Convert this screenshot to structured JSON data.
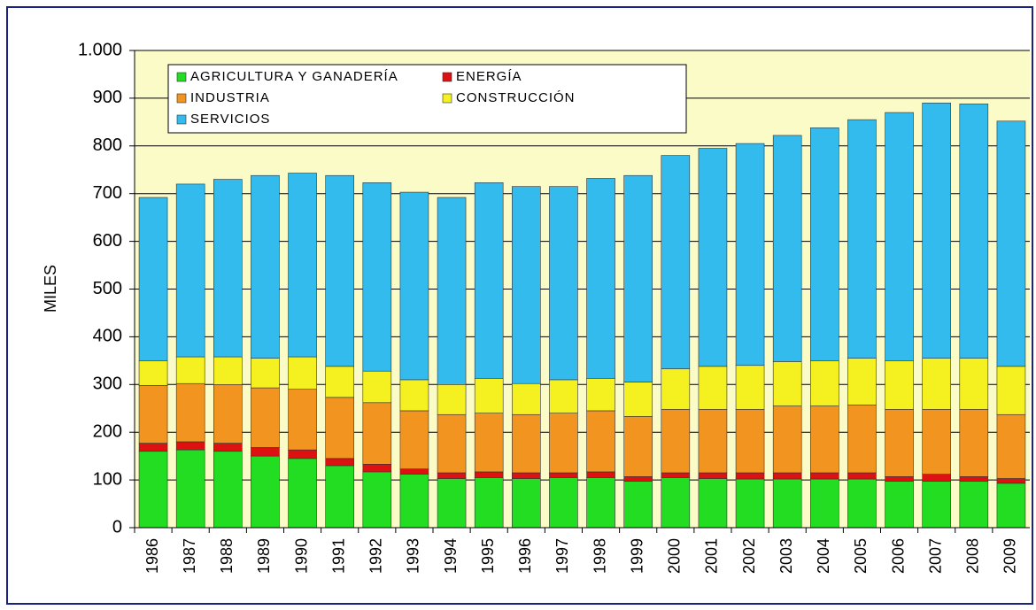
{
  "chart_data": {
    "type": "stacked_bar",
    "y_label": "MILES",
    "categories": [
      "1986",
      "1987",
      "1988",
      "1989",
      "1990",
      "1991",
      "1992",
      "1993",
      "1994",
      "1995",
      "1996",
      "1997",
      "1998",
      "1999",
      "2000",
      "2001",
      "2002",
      "2003",
      "2004",
      "2005",
      "2006",
      "2007",
      "2008",
      "2009"
    ],
    "series": [
      {
        "name": "AGRICULTURA Y GANADERÍA",
        "color": "#22dd22",
        "values": [
          160,
          163,
          160,
          150,
          145,
          130,
          117,
          112,
          103,
          105,
          103,
          105,
          105,
          97,
          105,
          103,
          102,
          102,
          102,
          102,
          97,
          97,
          97,
          93
        ]
      },
      {
        "name": "ENERGÍA",
        "color": "#dd1111",
        "values": [
          17,
          17,
          17,
          18,
          18,
          15,
          16,
          11,
          12,
          12,
          12,
          10,
          12,
          10,
          10,
          12,
          13,
          13,
          13,
          13,
          10,
          15,
          10,
          10
        ]
      },
      {
        "name": "INDUSTRIA",
        "color": "#f29420",
        "values": [
          121,
          122,
          123,
          125,
          127,
          128,
          129,
          122,
          122,
          123,
          122,
          125,
          128,
          126,
          133,
          133,
          133,
          140,
          140,
          142,
          141,
          136,
          141,
          134
        ]
      },
      {
        "name": "CONSTRUCCIÓN",
        "color": "#f5f020",
        "values": [
          52,
          56,
          58,
          62,
          68,
          65,
          66,
          65,
          63,
          73,
          65,
          70,
          68,
          72,
          85,
          90,
          92,
          93,
          95,
          98,
          102,
          107,
          107,
          101
        ]
      },
      {
        "name": "SERVICIOS",
        "color": "#33bbee",
        "values": [
          342,
          362,
          372,
          383,
          385,
          400,
          395,
          393,
          392,
          410,
          413,
          405,
          419,
          433,
          447,
          457,
          465,
          474,
          488,
          500,
          520,
          535,
          533,
          514
        ]
      }
    ],
    "ylim": [
      0,
      1000
    ],
    "yticks": [
      0,
      100,
      200,
      300,
      400,
      500,
      600,
      700,
      800,
      900,
      {
        "value": 1000,
        "label": "1.000"
      }
    ],
    "grid": true,
    "legend": "upper left"
  }
}
